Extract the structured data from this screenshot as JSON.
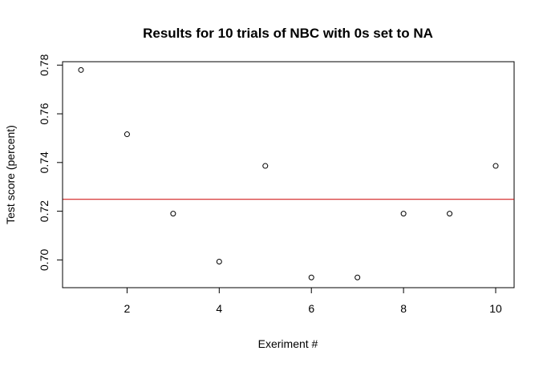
{
  "chart_data": {
    "type": "scatter",
    "title": "Results for 10 trials of NBC with 0s set to NA",
    "xlabel": "Exeriment #",
    "ylabel": "Test score (percent)",
    "xlim": [
      0.6,
      10.4
    ],
    "ylim": [
      0.6886,
      0.7814
    ],
    "x_ticks": [
      2,
      4,
      6,
      8,
      10
    ],
    "y_ticks": [
      0.7,
      0.72,
      0.74,
      0.76,
      0.78
    ],
    "y_tick_labels": [
      "0.70",
      "0.72",
      "0.74",
      "0.76",
      "0.78"
    ],
    "series": [
      {
        "x": [
          1,
          2,
          3,
          4,
          5,
          6,
          7,
          8,
          9,
          10
        ],
        "y": [
          0.778,
          0.7516,
          0.719,
          0.6993,
          0.7386,
          0.6928,
          0.6928,
          0.719,
          0.719,
          0.7386
        ],
        "marker": "open-circle",
        "color": "#000000"
      }
    ],
    "reference_lines": [
      {
        "orientation": "horizontal",
        "y": 0.7249,
        "color": "#cc0000"
      }
    ],
    "grid": false,
    "legend": false
  }
}
